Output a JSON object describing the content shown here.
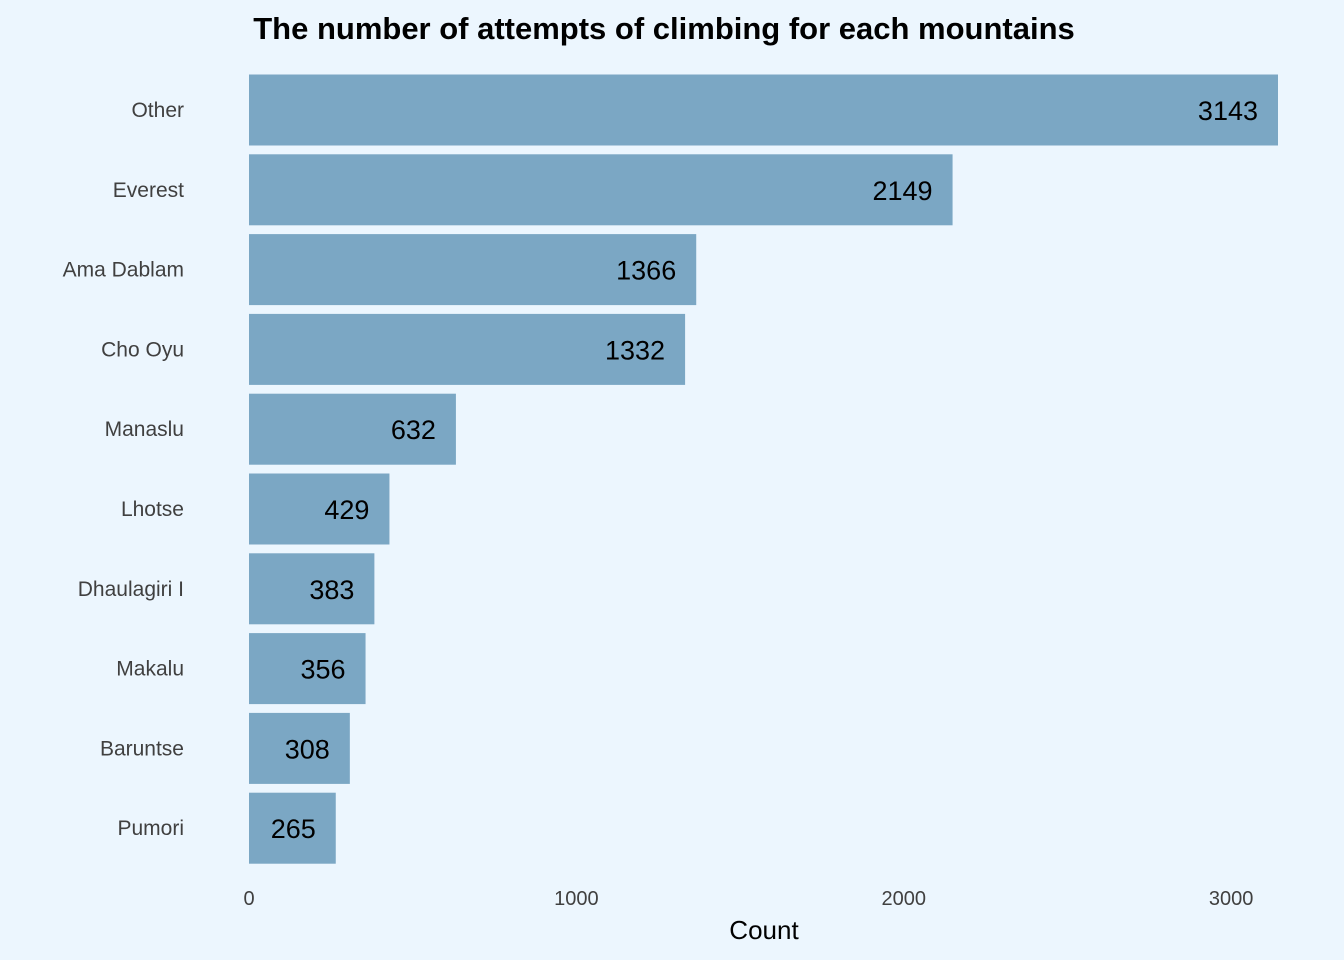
{
  "chart_data": {
    "type": "bar",
    "orientation": "horizontal",
    "title": "The number of attempts of climbing for each mountains",
    "xlabel": "Count",
    "ylabel": "",
    "categories": [
      "Other",
      "Everest",
      "Ama Dablam",
      "Cho Oyu",
      "Manaslu",
      "Lhotse",
      "Dhaulagiri I",
      "Makalu",
      "Baruntse",
      "Pumori"
    ],
    "values": [
      3143,
      2149,
      1366,
      1332,
      632,
      429,
      383,
      356,
      308,
      265
    ],
    "xlim": [
      0,
      3143
    ],
    "xticks": [
      0,
      1000,
      2000,
      3000
    ],
    "grid": false,
    "legend": "none",
    "colors": {
      "bar": "#7ba7c4",
      "background": "#ecf6fe"
    }
  }
}
